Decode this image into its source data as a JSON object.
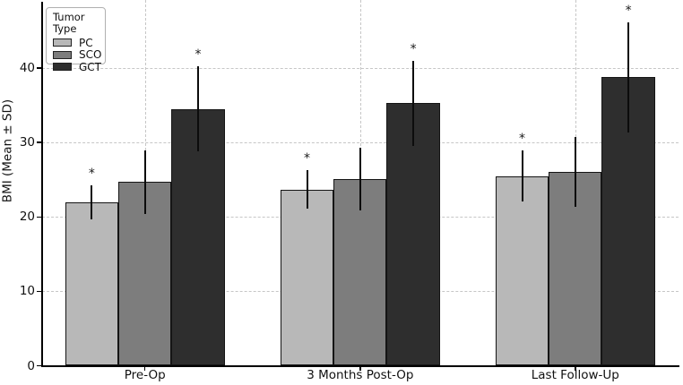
{
  "figure": {
    "background": "#ffffff"
  },
  "chart_data": {
    "type": "bar",
    "title": "",
    "xlabel": "",
    "ylabel": "BMI (Mean ± SD)",
    "categories": [
      "Pre-Op",
      "3 Months Post-Op",
      "Last Follow-Up"
    ],
    "yticks": [
      0,
      10,
      20,
      30,
      40
    ],
    "ylim": [
      0,
      49
    ],
    "grid": true,
    "error_bars": "standard deviation, no caps",
    "significance_marker": "*",
    "legend": {
      "title": "Tumor Type",
      "position": "upper-left"
    },
    "series": [
      {
        "name": "PC",
        "color": "#b8b8b8",
        "values": [
          22.0,
          23.7,
          25.5
        ],
        "sd": [
          2.3,
          2.6,
          3.4
        ],
        "significant": [
          true,
          true,
          true
        ]
      },
      {
        "name": "SCO",
        "color": "#7d7d7d",
        "values": [
          24.7,
          25.1,
          26.0
        ],
        "sd": [
          4.3,
          4.2,
          4.7
        ],
        "significant": [
          false,
          false,
          false
        ]
      },
      {
        "name": "GCT",
        "color": "#2e2e2e",
        "values": [
          34.5,
          35.3,
          38.8
        ],
        "sd": [
          5.7,
          5.7,
          7.4
        ],
        "significant": [
          true,
          true,
          true
        ]
      }
    ],
    "colors": {
      "bar_edge": "#151515",
      "gridline": "#c6c6c6",
      "axis": "#000000",
      "text": "#111111"
    }
  }
}
